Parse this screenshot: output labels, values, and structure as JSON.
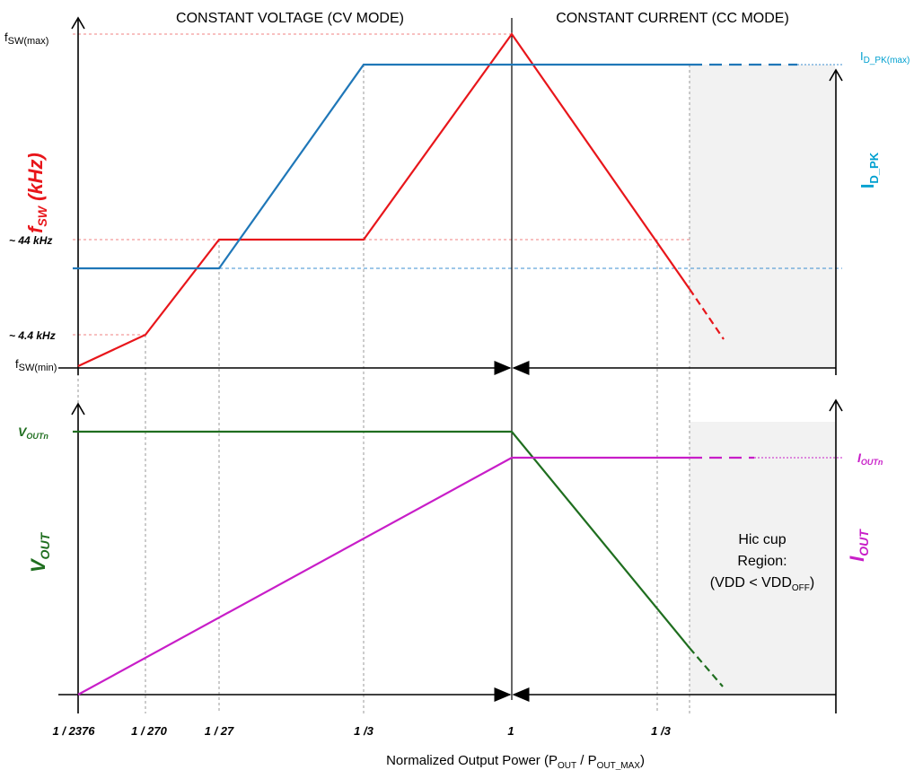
{
  "modes": {
    "cv": "CONSTANT VOLTAGE (CV MODE)",
    "cc": "CONSTANT CURRENT (CC MODE)"
  },
  "top_left_labels": {
    "fsw_max": "f",
    "fsw_max_sub": "SW(max)",
    "f44": "~ 44 kHz",
    "f4_4": "~ 4.4 kHz",
    "fsw_min": "f",
    "fsw_min_sub": "SW(min)"
  },
  "top_axis_titles": {
    "fsw": "f",
    "fsw_sub": "SW",
    "fsw_unit": " (kHz)",
    "idpk": "I",
    "idpk_sub": "D_PK"
  },
  "top_right_labels": {
    "idpk_max": "I",
    "idpk_max_sub": "D_PK(max)"
  },
  "bottom_left_labels": {
    "voutn": "V",
    "voutn_sub": "OUTn"
  },
  "bottom_axis_titles": {
    "vout": "V",
    "vout_sub": "OUT",
    "iout": "I",
    "iout_sub": "OUT"
  },
  "bottom_right_labels": {
    "ioutn": "I",
    "ioutn_sub": "OUTn"
  },
  "hiccup": {
    "line1": "Hic cup",
    "line2": "Region:",
    "line3_a": "(VDD < VDD",
    "line3_sub": "OFF",
    "line3_b": ")"
  },
  "x_ticks": [
    "1 / 2376",
    "1 / 270",
    "1 / 27",
    "1 /3",
    "1",
    "1 /3"
  ],
  "x_axis_title": {
    "a": "Normalized Output Power (P",
    "a_sub": "OUT",
    "b": " / P",
    "b_sub": "OUT_MAX",
    "c": ")"
  },
  "colors": {
    "fsw": "#e8161b",
    "idpk": "#1f77b8",
    "idpk_label": "#00a0d0",
    "vout": "#1f6e1f",
    "iout": "#c81ec8",
    "hiccup_fill": "#f2f2f2"
  },
  "chart_data": {
    "type": "line",
    "x_categories": [
      "1 / 2376",
      "1 / 270",
      "1 / 27",
      "1 /3",
      "1",
      "1 /3"
    ],
    "top_panel": {
      "series": [
        {
          "name": "fSW (kHz)",
          "y_ticks": [
            "fSW(min)",
            "~ 4.4 kHz",
            "~ 44 kHz",
            "fSW(max)"
          ]
        },
        {
          "name": "ID_PK",
          "y_ticks": [
            "ID_PK(max)"
          ]
        }
      ]
    },
    "bottom_panel": {
      "series": [
        {
          "name": "VOUT",
          "y_ticks": [
            "VOUTn"
          ]
        },
        {
          "name": "IOUT",
          "y_ticks": [
            "IOUTn"
          ]
        }
      ]
    }
  }
}
